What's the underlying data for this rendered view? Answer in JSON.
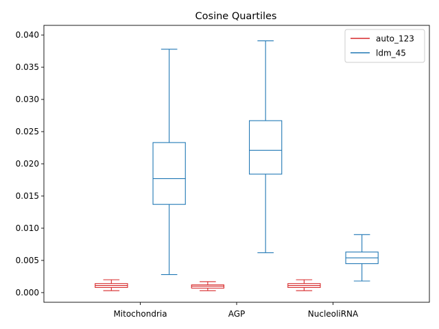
{
  "chart_data": {
    "type": "box",
    "title": "Cosine Quartiles",
    "xlabel": "",
    "ylabel": "",
    "categories": [
      "Mitochondria",
      "AGP",
      "NucleoliRNA"
    ],
    "ylim": [
      -0.0015,
      0.0415
    ],
    "yticks": [
      "0.000",
      "0.005",
      "0.010",
      "0.015",
      "0.020",
      "0.025",
      "0.030",
      "0.035",
      "0.040"
    ],
    "legend_position": "top-right",
    "grid": false,
    "series": [
      {
        "name": "auto_123",
        "color": "#d62728",
        "boxes": [
          {
            "whislo": 0.0003,
            "q1": 0.0008,
            "med": 0.0011,
            "q3": 0.0014,
            "whishi": 0.002
          },
          {
            "whislo": 0.0003,
            "q1": 0.0007,
            "med": 0.001,
            "q3": 0.0012,
            "whishi": 0.0017
          },
          {
            "whislo": 0.0003,
            "q1": 0.0008,
            "med": 0.0011,
            "q3": 0.0014,
            "whishi": 0.002
          }
        ]
      },
      {
        "name": "ldm_45",
        "color": "#1f77b4",
        "boxes": [
          {
            "whislo": 0.0028,
            "q1": 0.0137,
            "med": 0.0177,
            "q3": 0.0233,
            "whishi": 0.0378
          },
          {
            "whislo": 0.0062,
            "q1": 0.0184,
            "med": 0.0221,
            "q3": 0.0267,
            "whishi": 0.0391
          },
          {
            "whislo": 0.0018,
            "q1": 0.0045,
            "med": 0.0054,
            "q3": 0.0063,
            "whishi": 0.009
          }
        ]
      }
    ]
  }
}
